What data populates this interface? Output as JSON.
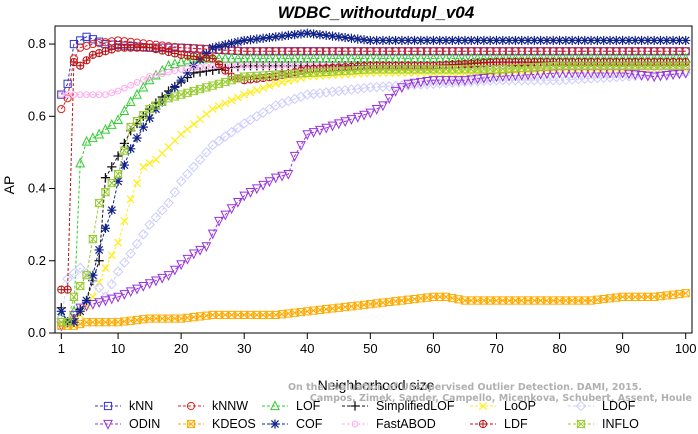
{
  "chart_data": {
    "type": "line",
    "title": "WDBC_withoutdupl_v04",
    "xlabel": "Neighborhood size",
    "ylabel": "AP",
    "xlim": [
      0,
      101
    ],
    "ylim": [
      0,
      0.85
    ],
    "x_ticks": [
      1,
      10,
      20,
      30,
      40,
      50,
      60,
      70,
      80,
      90,
      100
    ],
    "y_ticks": [
      0.0,
      0.2,
      0.4,
      0.6,
      0.8
    ],
    "grid": false,
    "legend_position": "bottom",
    "watermark": [
      "Campos, Zimek, Sander, Campello, Micenkova, Schubert, Assent, Houle",
      "On the Evaluation of Unsupervised Outlier Detection. DAMI, 2015."
    ],
    "series": [
      {
        "name": "kNN",
        "color": "#3333cc",
        "marker": "square",
        "points": [
          [
            1,
            0.66
          ],
          [
            2,
            0.69
          ],
          [
            3,
            0.8
          ],
          [
            4,
            0.81
          ],
          [
            5,
            0.82
          ],
          [
            8,
            0.8
          ],
          [
            15,
            0.79
          ],
          [
            20,
            0.79
          ],
          [
            30,
            0.78
          ],
          [
            40,
            0.78
          ],
          [
            50,
            0.78
          ],
          [
            60,
            0.78
          ],
          [
            70,
            0.78
          ],
          [
            80,
            0.78
          ],
          [
            90,
            0.78
          ],
          [
            100,
            0.78
          ]
        ]
      },
      {
        "name": "kNNW",
        "color": "#dd2222",
        "marker": "circle",
        "points": [
          [
            1,
            0.62
          ],
          [
            2,
            0.65
          ],
          [
            3,
            0.76
          ],
          [
            4,
            0.79
          ],
          [
            6,
            0.8
          ],
          [
            10,
            0.81
          ],
          [
            15,
            0.8
          ],
          [
            20,
            0.79
          ],
          [
            30,
            0.78
          ],
          [
            40,
            0.78
          ],
          [
            50,
            0.78
          ],
          [
            60,
            0.78
          ],
          [
            70,
            0.78
          ],
          [
            80,
            0.78
          ],
          [
            90,
            0.78
          ],
          [
            100,
            0.78
          ]
        ]
      },
      {
        "name": "LOF",
        "color": "#33cc33",
        "marker": "triangle",
        "points": [
          [
            1,
            0.05
          ],
          [
            2,
            0.03
          ],
          [
            3,
            0.06
          ],
          [
            4,
            0.47
          ],
          [
            5,
            0.53
          ],
          [
            7,
            0.55
          ],
          [
            10,
            0.59
          ],
          [
            12,
            0.64
          ],
          [
            15,
            0.7
          ],
          [
            18,
            0.74
          ],
          [
            22,
            0.76
          ],
          [
            30,
            0.76
          ],
          [
            40,
            0.76
          ],
          [
            50,
            0.76
          ],
          [
            60,
            0.76
          ],
          [
            70,
            0.76
          ],
          [
            80,
            0.76
          ],
          [
            90,
            0.76
          ],
          [
            100,
            0.76
          ]
        ]
      },
      {
        "name": "SimplifiedLOF",
        "color": "#111111",
        "marker": "plus",
        "points": [
          [
            1,
            0.07
          ],
          [
            2,
            0.03
          ],
          [
            3,
            0.04
          ],
          [
            5,
            0.09
          ],
          [
            7,
            0.2
          ],
          [
            8,
            0.43
          ],
          [
            10,
            0.49
          ],
          [
            12,
            0.56
          ],
          [
            15,
            0.62
          ],
          [
            18,
            0.67
          ],
          [
            22,
            0.72
          ],
          [
            26,
            0.73
          ],
          [
            30,
            0.74
          ],
          [
            40,
            0.74
          ],
          [
            50,
            0.74
          ],
          [
            60,
            0.74
          ],
          [
            70,
            0.75
          ],
          [
            80,
            0.75
          ],
          [
            90,
            0.75
          ],
          [
            100,
            0.75
          ]
        ]
      },
      {
        "name": "LoOP",
        "color": "#ffee22",
        "marker": "x",
        "points": [
          [
            1,
            0.03
          ],
          [
            2,
            0.03
          ],
          [
            4,
            0.05
          ],
          [
            6,
            0.1
          ],
          [
            8,
            0.18
          ],
          [
            10,
            0.25
          ],
          [
            12,
            0.37
          ],
          [
            14,
            0.46
          ],
          [
            16,
            0.48
          ],
          [
            20,
            0.55
          ],
          [
            25,
            0.62
          ],
          [
            30,
            0.66
          ],
          [
            35,
            0.69
          ],
          [
            40,
            0.71
          ],
          [
            50,
            0.72
          ],
          [
            60,
            0.72
          ],
          [
            70,
            0.72
          ],
          [
            80,
            0.73
          ],
          [
            90,
            0.73
          ],
          [
            100,
            0.73
          ]
        ]
      },
      {
        "name": "LDOF",
        "color": "#ccccff",
        "marker": "diamond",
        "points": [
          [
            1,
            0.04
          ],
          [
            2,
            0.15
          ],
          [
            4,
            0.18
          ],
          [
            6,
            0.15
          ],
          [
            8,
            0.1
          ],
          [
            10,
            0.17
          ],
          [
            12,
            0.22
          ],
          [
            15,
            0.3
          ],
          [
            18,
            0.36
          ],
          [
            20,
            0.42
          ],
          [
            25,
            0.52
          ],
          [
            30,
            0.58
          ],
          [
            35,
            0.63
          ],
          [
            40,
            0.66
          ],
          [
            50,
            0.68
          ],
          [
            60,
            0.69
          ],
          [
            70,
            0.7
          ],
          [
            80,
            0.7
          ],
          [
            90,
            0.71
          ],
          [
            100,
            0.72
          ]
        ]
      },
      {
        "name": "ODIN",
        "color": "#9933dd",
        "marker": "triangle-down",
        "points": [
          [
            1,
            0.02
          ],
          [
            2,
            0.03
          ],
          [
            4,
            0.07
          ],
          [
            6,
            0.08
          ],
          [
            8,
            0.09
          ],
          [
            10,
            0.1
          ],
          [
            14,
            0.13
          ],
          [
            18,
            0.16
          ],
          [
            22,
            0.22
          ],
          [
            24,
            0.24
          ],
          [
            26,
            0.31
          ],
          [
            30,
            0.38
          ],
          [
            35,
            0.43
          ],
          [
            37,
            0.44
          ],
          [
            38,
            0.49
          ],
          [
            40,
            0.55
          ],
          [
            45,
            0.58
          ],
          [
            50,
            0.61
          ],
          [
            52,
            0.63
          ],
          [
            54,
            0.67
          ],
          [
            56,
            0.69
          ],
          [
            60,
            0.7
          ],
          [
            65,
            0.7
          ],
          [
            70,
            0.71
          ],
          [
            80,
            0.72
          ],
          [
            90,
            0.72
          ],
          [
            95,
            0.71
          ],
          [
            100,
            0.72
          ]
        ]
      },
      {
        "name": "KDEOS",
        "color": "#ffaa00",
        "marker": "square-x",
        "points": [
          [
            1,
            0.02
          ],
          [
            3,
            0.02
          ],
          [
            5,
            0.03
          ],
          [
            10,
            0.03
          ],
          [
            15,
            0.04
          ],
          [
            20,
            0.04
          ],
          [
            25,
            0.05
          ],
          [
            30,
            0.05
          ],
          [
            35,
            0.05
          ],
          [
            40,
            0.06
          ],
          [
            45,
            0.07
          ],
          [
            50,
            0.08
          ],
          [
            55,
            0.09
          ],
          [
            60,
            0.1
          ],
          [
            62,
            0.1
          ],
          [
            65,
            0.09
          ],
          [
            70,
            0.09
          ],
          [
            75,
            0.09
          ],
          [
            80,
            0.09
          ],
          [
            85,
            0.09
          ],
          [
            90,
            0.1
          ],
          [
            95,
            0.1
          ],
          [
            100,
            0.11
          ]
        ]
      },
      {
        "name": "COF",
        "color": "#112288",
        "marker": "star",
        "points": [
          [
            1,
            0.06
          ],
          [
            2,
            0.03
          ],
          [
            3,
            0.03
          ],
          [
            5,
            0.09
          ],
          [
            7,
            0.23
          ],
          [
            8,
            0.29
          ],
          [
            9,
            0.34
          ],
          [
            10,
            0.42
          ],
          [
            12,
            0.51
          ],
          [
            14,
            0.57
          ],
          [
            16,
            0.62
          ],
          [
            18,
            0.66
          ],
          [
            20,
            0.7
          ],
          [
            22,
            0.74
          ],
          [
            25,
            0.79
          ],
          [
            30,
            0.81
          ],
          [
            35,
            0.82
          ],
          [
            40,
            0.83
          ],
          [
            50,
            0.81
          ],
          [
            60,
            0.81
          ],
          [
            70,
            0.81
          ],
          [
            80,
            0.81
          ],
          [
            90,
            0.81
          ],
          [
            100,
            0.81
          ]
        ]
      },
      {
        "name": "FastABOD",
        "color": "#ffaaee",
        "marker": "circle-small",
        "points": [
          [
            1,
            0.66
          ],
          [
            2,
            0.66
          ],
          [
            3,
            0.66
          ],
          [
            5,
            0.66
          ],
          [
            8,
            0.66
          ],
          [
            10,
            0.67
          ],
          [
            15,
            0.71
          ],
          [
            20,
            0.73
          ],
          [
            25,
            0.74
          ],
          [
            30,
            0.74
          ],
          [
            40,
            0.74
          ],
          [
            50,
            0.74
          ],
          [
            60,
            0.74
          ],
          [
            70,
            0.74
          ],
          [
            80,
            0.74
          ],
          [
            90,
            0.74
          ],
          [
            100,
            0.74
          ]
        ]
      },
      {
        "name": "LDF",
        "color": "#bb1111",
        "marker": "circle-plus",
        "points": [
          [
            1,
            0.12
          ],
          [
            2,
            0.12
          ],
          [
            3,
            0.75
          ],
          [
            4,
            0.74
          ],
          [
            6,
            0.77
          ],
          [
            8,
            0.78
          ],
          [
            10,
            0.79
          ],
          [
            15,
            0.79
          ],
          [
            20,
            0.77
          ],
          [
            25,
            0.76
          ],
          [
            28,
            0.71
          ],
          [
            30,
            0.7
          ],
          [
            35,
            0.71
          ],
          [
            40,
            0.73
          ],
          [
            50,
            0.74
          ],
          [
            60,
            0.74
          ],
          [
            70,
            0.75
          ],
          [
            80,
            0.75
          ],
          [
            90,
            0.75
          ],
          [
            100,
            0.75
          ]
        ]
      },
      {
        "name": "INFLO",
        "color": "#99cc33",
        "marker": "hourglass",
        "points": [
          [
            1,
            0.03
          ],
          [
            2,
            0.03
          ],
          [
            3,
            0.1
          ],
          [
            5,
            0.16
          ],
          [
            7,
            0.36
          ],
          [
            8,
            0.39
          ],
          [
            10,
            0.44
          ],
          [
            12,
            0.57
          ],
          [
            15,
            0.62
          ],
          [
            18,
            0.65
          ],
          [
            22,
            0.67
          ],
          [
            26,
            0.69
          ],
          [
            30,
            0.71
          ],
          [
            40,
            0.72
          ],
          [
            50,
            0.73
          ],
          [
            60,
            0.73
          ],
          [
            70,
            0.73
          ],
          [
            80,
            0.74
          ],
          [
            90,
            0.74
          ],
          [
            100,
            0.74
          ]
        ]
      }
    ]
  }
}
